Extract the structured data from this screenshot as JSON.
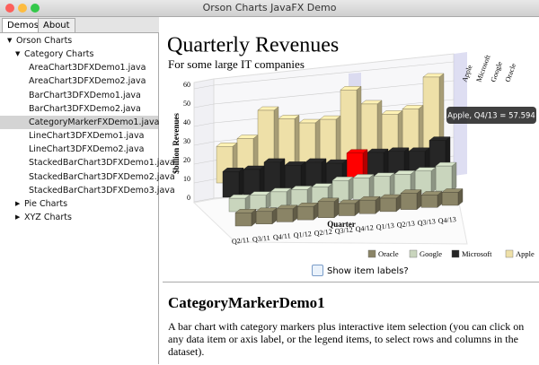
{
  "window": {
    "title": "Orson Charts JavaFX Demo"
  },
  "tabs": [
    "Demos",
    "About"
  ],
  "tree": [
    {
      "label": "Orson Charts",
      "level": 0,
      "expanded": true
    },
    {
      "label": "Category Charts",
      "level": 1,
      "expanded": true
    },
    {
      "label": "AreaChart3DFXDemo1.java",
      "level": 2
    },
    {
      "label": "AreaChart3DFXDemo2.java",
      "level": 2
    },
    {
      "label": "BarChart3DFXDemo1.java",
      "level": 2
    },
    {
      "label": "BarChart3DFXDemo2.java",
      "level": 2
    },
    {
      "label": "CategoryMarkerFXDemo1.java",
      "level": 2,
      "selected": true
    },
    {
      "label": "LineChart3DFXDemo1.java",
      "level": 2
    },
    {
      "label": "LineChart3DFXDemo2.java",
      "level": 2
    },
    {
      "label": "StackedBarChart3DFXDemo1.java",
      "level": 2
    },
    {
      "label": "StackedBarChart3DFXDemo2.java",
      "level": 2
    },
    {
      "label": "StackedBarChart3DFXDemo3.java",
      "level": 2
    },
    {
      "label": "Pie Charts",
      "level": 1,
      "expanded": false
    },
    {
      "label": "XYZ Charts",
      "level": 1,
      "expanded": false
    }
  ],
  "chart_data": {
    "type": "bar3d",
    "title": "Quarterly Revenues",
    "subtitle": "For some large IT companies",
    "y_label": "$billion Revenues",
    "x_label": "Quarter",
    "categories": [
      "Q2/11",
      "Q3/11",
      "Q4/11",
      "Q1/12",
      "Q2/12",
      "Q3/12",
      "Q4/12",
      "Q1/13",
      "Q2/13",
      "Q3/13",
      "Q4/13"
    ],
    "series": [
      {
        "name": "Oracle",
        "color": "#8a8466",
        "values": [
          8.9,
          8.4,
          8.8,
          9.0,
          10.9,
          8.2,
          9.1,
          9.0,
          10.9,
          8.4,
          8.8
        ]
      },
      {
        "name": "Google",
        "color": "#c9d5bd",
        "values": [
          9.0,
          9.7,
          10.6,
          10.7,
          11.0,
          14.1,
          14.4,
          14.0,
          14.1,
          14.9,
          16.9
        ]
      },
      {
        "name": "Microsoft",
        "color": "#262626",
        "values": [
          17.4,
          17.4,
          20.9,
          17.4,
          18.1,
          16.0,
          21.5,
          20.5,
          19.9,
          18.5,
          24.5
        ]
      },
      {
        "name": "Apple",
        "color": "#eee0a8",
        "values": [
          24.7,
          28.6,
          46.3,
          39.2,
          35.0,
          36.0,
          54.5,
          43.6,
          35.3,
          37.5,
          57.594
        ]
      }
    ],
    "ylim": [
      0,
      60
    ],
    "yticks": [
      0,
      10,
      20,
      30,
      40,
      50,
      60
    ],
    "highlight": {
      "series": 2,
      "category": 6,
      "color": "#ff0000"
    },
    "tooltip": "Apple, Q4/13 = 57.594"
  },
  "checkbox": {
    "label": "Show item labels?",
    "checked": false
  },
  "description": {
    "heading": "CategoryMarkerDemo1",
    "text": "A bar chart with category markers plus interactive item selection (you can click on any data item or axis label, or the legend items, to select rows and columns in the dataset)."
  }
}
